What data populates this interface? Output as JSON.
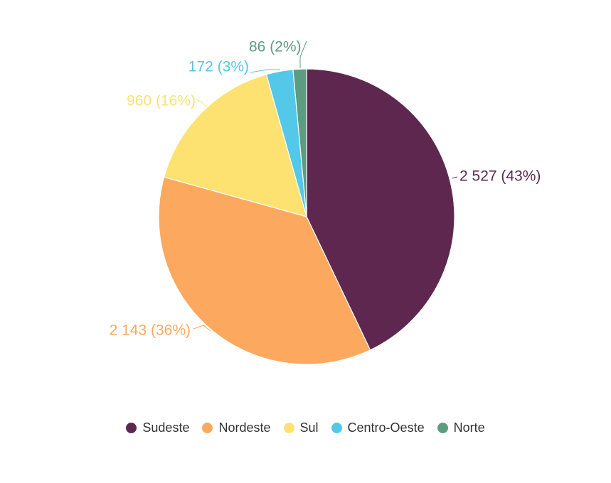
{
  "chart_data": {
    "type": "pie",
    "title": "",
    "slices": [
      {
        "category": "Sudeste",
        "value": 2527,
        "percent": 43,
        "label": "2 527 (43%)",
        "color": "#5e2750"
      },
      {
        "category": "Nordeste",
        "value": 2143,
        "percent": 36,
        "label": "2 143 (36%)",
        "color": "#fda85f"
      },
      {
        "category": "Sul",
        "value": 960,
        "percent": 16,
        "label": "960 (16%)",
        "color": "#fde272"
      },
      {
        "category": "Centro-Oeste",
        "value": 172,
        "percent": 3,
        "label": "172 (3%)",
        "color": "#53c8e8"
      },
      {
        "category": "Norte",
        "value": 86,
        "percent": 2,
        "label": "86 (2%)",
        "color": "#5c9c80"
      }
    ],
    "start_angle": "12 o'clock",
    "direction": "clockwise",
    "legend_position": "bottom-center"
  },
  "legend": {
    "items": [
      {
        "label": "Sudeste",
        "color": "#5e2750"
      },
      {
        "label": "Nordeste",
        "color": "#fda85f"
      },
      {
        "label": "Sul",
        "color": "#fde272"
      },
      {
        "label": "Centro-Oeste",
        "color": "#53c8e8"
      },
      {
        "label": "Norte",
        "color": "#5c9c80"
      }
    ]
  }
}
